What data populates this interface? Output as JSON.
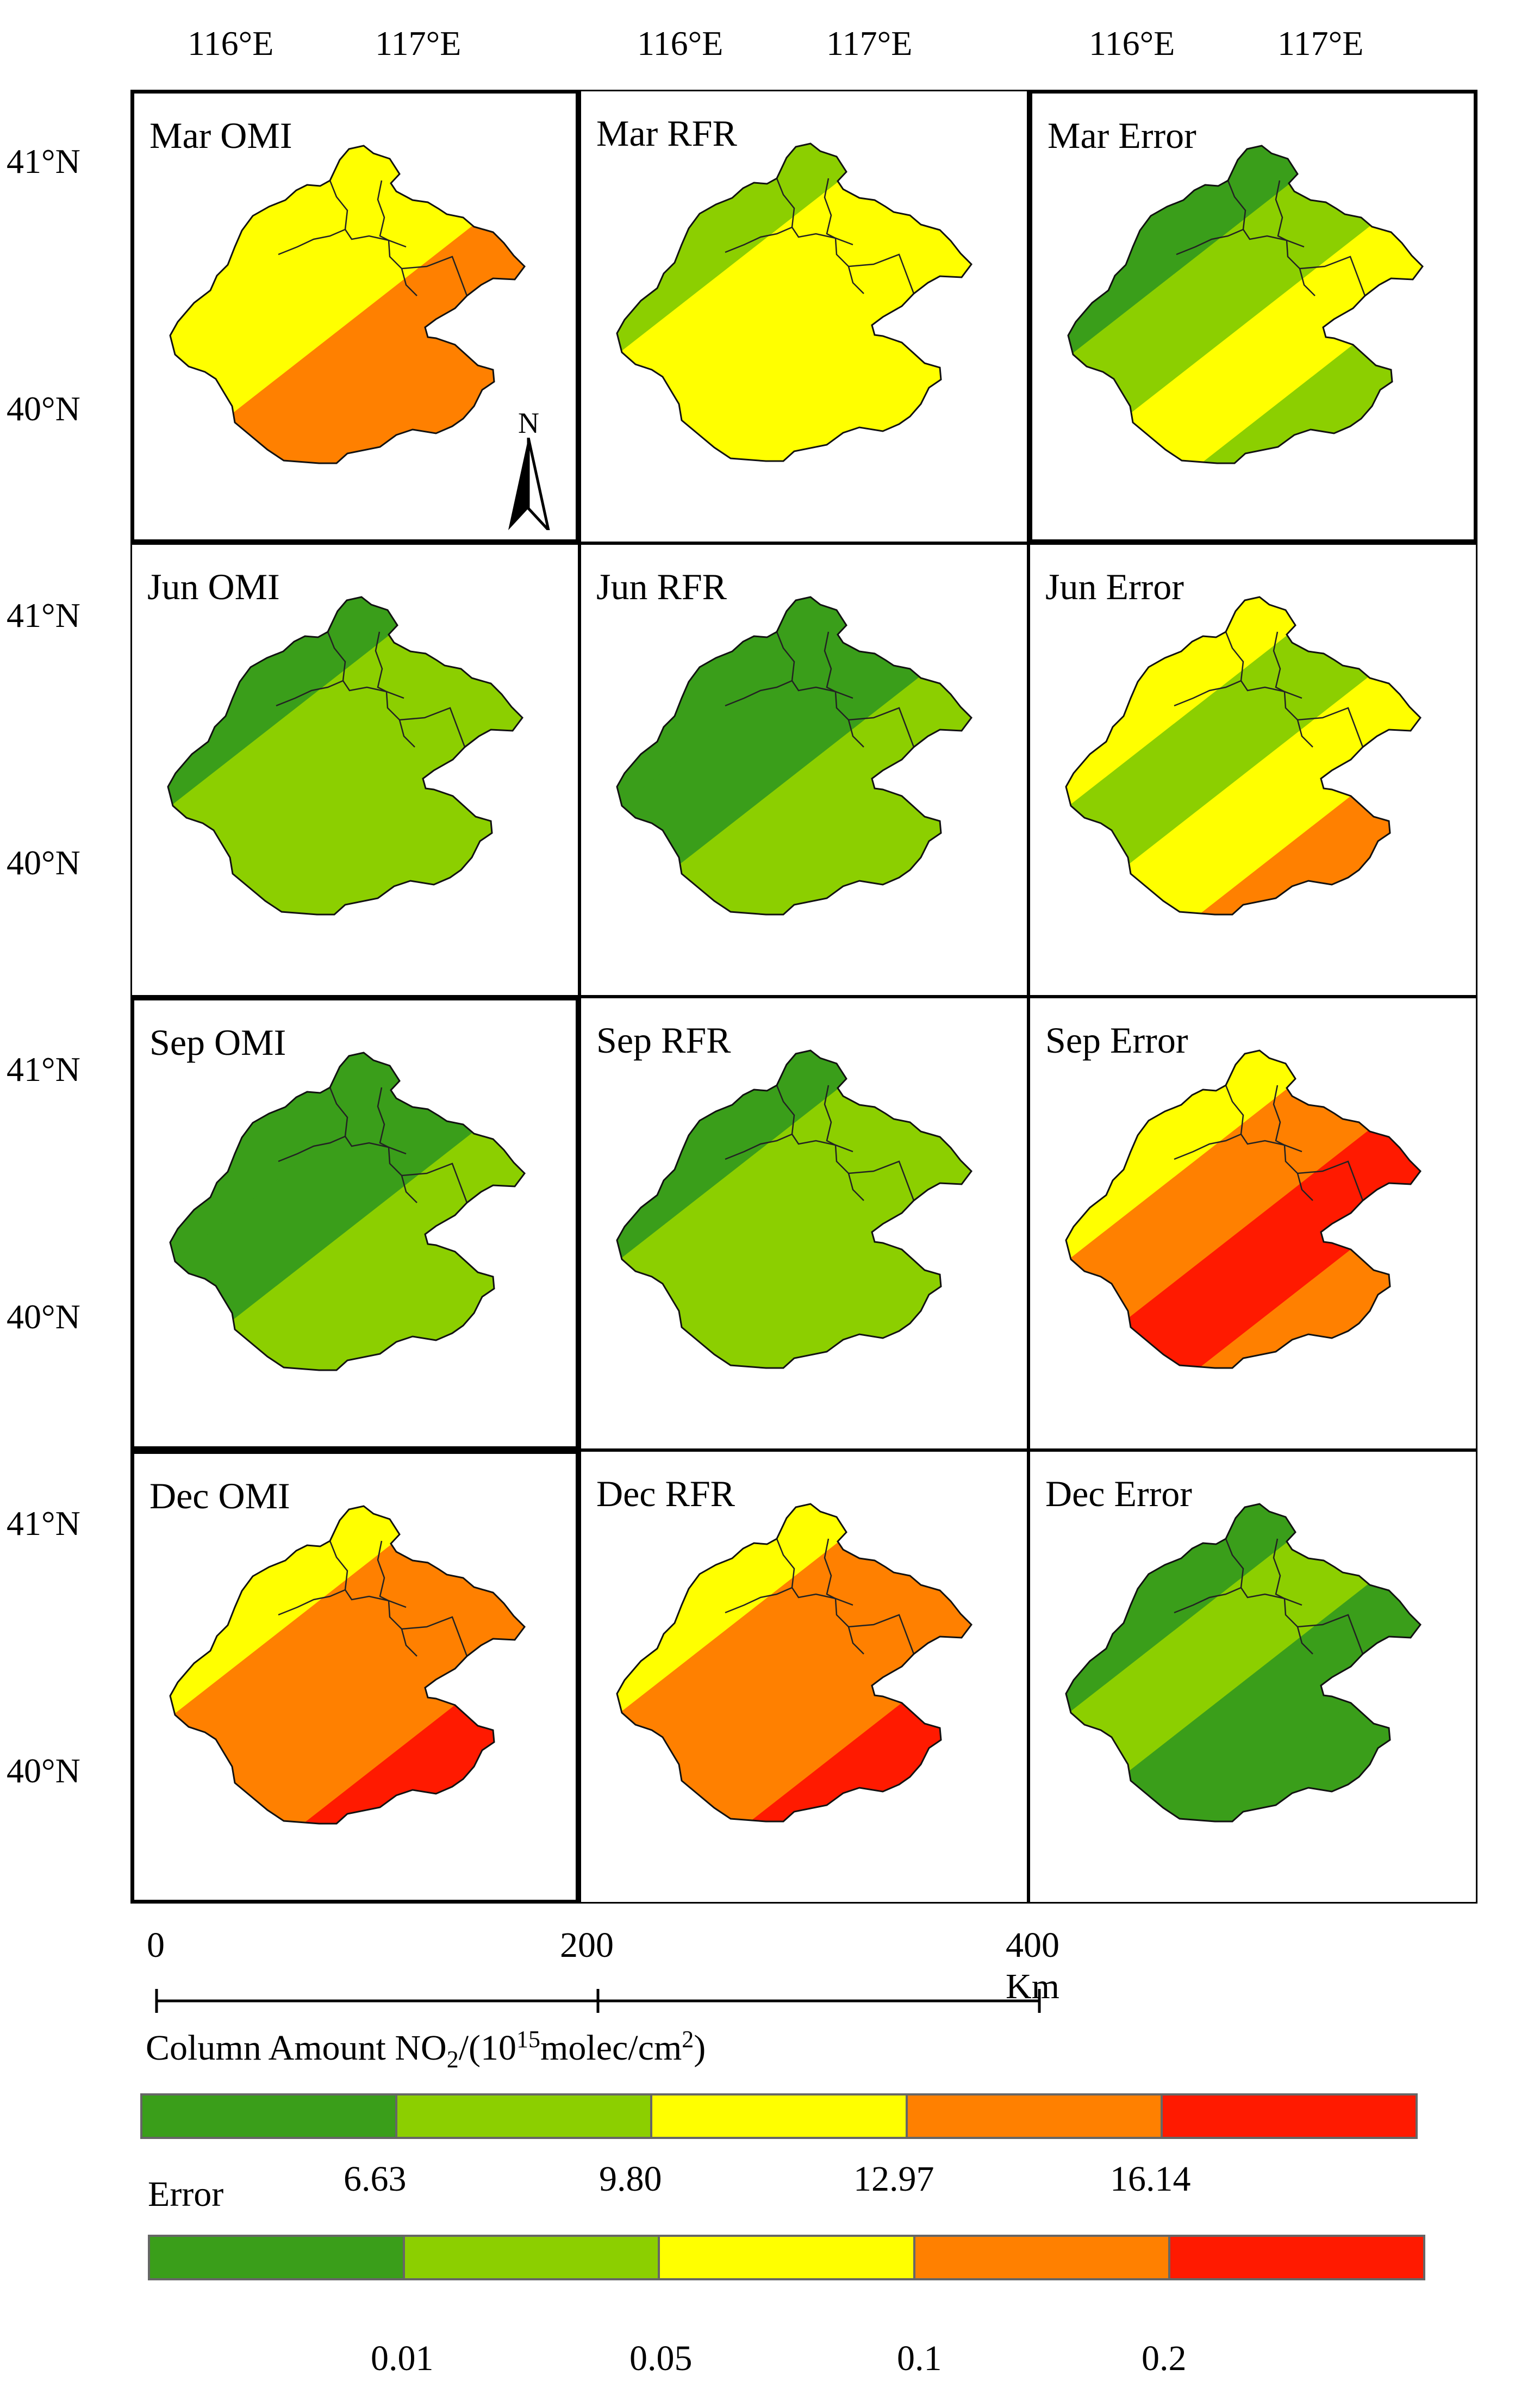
{
  "lon_labels": [
    "116°E",
    "117°E"
  ],
  "lat_labels": [
    "41°N",
    "40°N"
  ],
  "rows": [
    {
      "panels": [
        {
          "title": "Mar OMI",
          "scheme": [
            1,
            1,
            2,
            2,
            3,
            3,
            3,
            4
          ]
        },
        {
          "title": "Mar RFR",
          "scheme": [
            1,
            1,
            1,
            2,
            2,
            2,
            2,
            2
          ]
        },
        {
          "title": "Mar Error",
          "scheme": [
            0,
            1,
            0,
            1,
            2,
            1,
            2,
            2
          ]
        }
      ]
    },
    {
      "panels": [
        {
          "title": "Jun OMI",
          "scheme": [
            0,
            0,
            0,
            1,
            1,
            1,
            1,
            1
          ]
        },
        {
          "title": "Jun RFR",
          "scheme": [
            0,
            0,
            0,
            0,
            1,
            1,
            1,
            1
          ]
        },
        {
          "title": "Jun Error",
          "scheme": [
            0,
            1,
            2,
            1,
            2,
            3,
            2,
            1
          ]
        }
      ]
    },
    {
      "panels": [
        {
          "title": "Sep OMI",
          "scheme": [
            0,
            0,
            0,
            0,
            1,
            1,
            1,
            1
          ]
        },
        {
          "title": "Sep RFR",
          "scheme": [
            0,
            0,
            0,
            1,
            1,
            1,
            1,
            1
          ]
        },
        {
          "title": "Sep Error",
          "scheme": [
            0,
            1,
            2,
            3,
            4,
            3,
            2,
            0
          ]
        }
      ]
    },
    {
      "panels": [
        {
          "title": "Dec OMI",
          "scheme": [
            1,
            2,
            2,
            3,
            3,
            4,
            4,
            4
          ]
        },
        {
          "title": "Dec RFR",
          "scheme": [
            1,
            2,
            2,
            3,
            3,
            4,
            4,
            4
          ]
        },
        {
          "title": "Dec Error",
          "scheme": [
            0,
            1,
            0,
            1,
            0,
            0,
            1,
            0
          ]
        }
      ]
    }
  ],
  "north_label": "N",
  "scale": {
    "ticks": [
      "0",
      "200",
      "400 Km"
    ]
  },
  "colors": [
    "#3a9e1a",
    "#8ccf00",
    "#ffff00",
    "#ff8000",
    "#ff1a00"
  ],
  "legend": {
    "title_prefix": "Column Amount NO",
    "title_sub": "2",
    "title_mid": "/(10",
    "title_sup": "15",
    "title_mid2": "molec/cm",
    "title_sup2": "2",
    "title_end": ")",
    "no2_ticks": [
      "6.63",
      "9.80",
      "12.97",
      "16.14"
    ],
    "error_title": "Error",
    "error_ticks": [
      "0.01",
      "0.05",
      "0.1",
      "0.2"
    ]
  }
}
